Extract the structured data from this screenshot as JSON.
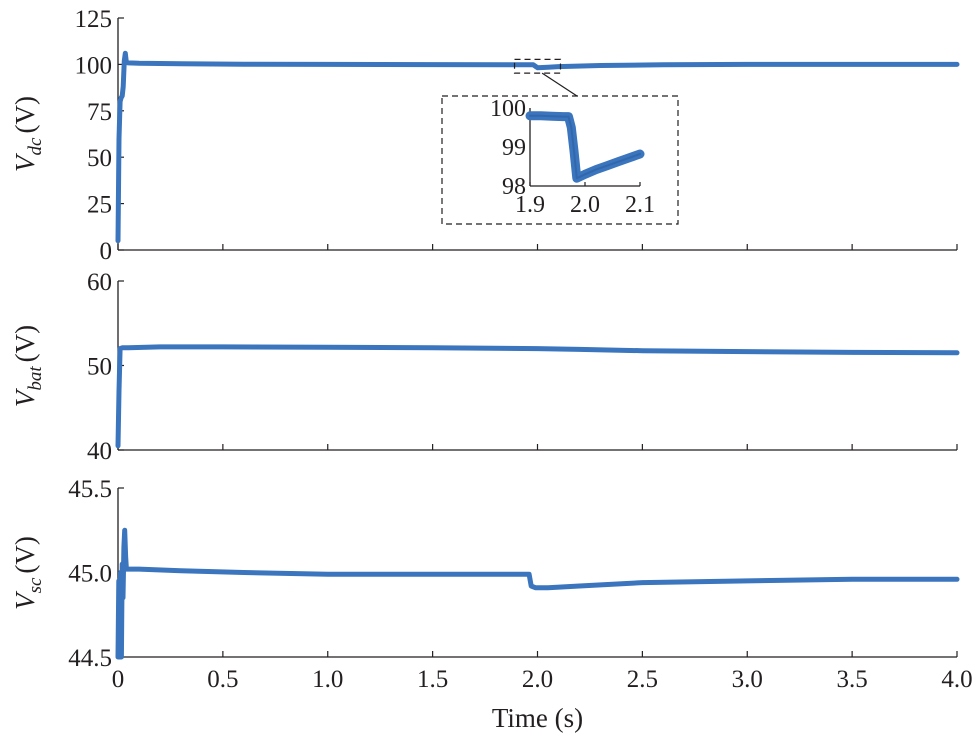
{
  "chart_data": [
    {
      "type": "line",
      "ylabel": {
        "symbol": "V",
        "subscript": "dc",
        "unit": "(V)"
      },
      "xlim": [
        0,
        4.0
      ],
      "ylim": [
        0,
        125
      ],
      "yticks": [
        0,
        25,
        50,
        75,
        100,
        125
      ],
      "ytick_labels": [
        "0",
        "25",
        "50",
        "75",
        "100",
        "125"
      ],
      "grid": false,
      "series": [
        {
          "x": [
            0,
            0.005,
            0.01,
            0.015,
            0.02,
            0.025,
            0.03,
            0.035,
            0.04,
            0.05,
            0.1,
            0.3,
            0.6,
            1.0,
            1.5,
            1.9,
            1.98,
            2.0,
            2.05,
            2.1,
            2.3,
            2.6,
            3.0,
            3.5,
            4.0
          ],
          "y": [
            5,
            60,
            80,
            82,
            83,
            88,
            102,
            106,
            101,
            100.8,
            100.6,
            100.3,
            100.1,
            100.0,
            99.9,
            99.8,
            99.8,
            98.2,
            98.5,
            98.8,
            99.4,
            99.8,
            100.0,
            100.0,
            100.0
          ]
        }
      ],
      "zoom_region": {
        "xlim": [
          1.9,
          2.1
        ],
        "ylim": [
          98,
          100
        ]
      },
      "inset": {
        "xlim": [
          1.9,
          2.1
        ],
        "ylim": [
          98,
          100
        ],
        "xticks": [
          1.9,
          2.0,
          2.1
        ],
        "xtick_labels": [
          "1.9",
          "2.0",
          "2.1"
        ],
        "yticks": [
          98,
          99,
          100
        ],
        "ytick_labels": [
          "98",
          "99",
          "100"
        ],
        "series": [
          {
            "x": [
              1.9,
              1.92,
              1.94,
              1.96,
              1.97,
              1.975,
              1.98,
              1.985,
              2.0,
              2.02,
              2.04,
              2.06,
              2.08,
              2.1
            ],
            "y": [
              99.8,
              99.8,
              99.79,
              99.78,
              99.78,
              99.5,
              98.9,
              98.2,
              98.3,
              98.42,
              98.52,
              98.62,
              98.72,
              98.82
            ]
          }
        ]
      }
    },
    {
      "type": "line",
      "ylabel": {
        "symbol": "V",
        "subscript": "bat",
        "unit": "(V)"
      },
      "xlim": [
        0,
        4.0
      ],
      "ylim": [
        40,
        60
      ],
      "yticks": [
        40,
        50,
        60
      ],
      "ytick_labels": [
        "40",
        "50",
        "60"
      ],
      "grid": false,
      "series": [
        {
          "x": [
            0,
            0.005,
            0.01,
            0.02,
            0.05,
            0.2,
            0.5,
            1.0,
            1.5,
            2.0,
            2.2,
            2.5,
            3.0,
            3.5,
            4.0
          ],
          "y": [
            40.5,
            47,
            52,
            52.1,
            52.1,
            52.2,
            52.2,
            52.15,
            52.1,
            52.0,
            51.9,
            51.75,
            51.65,
            51.55,
            51.5
          ]
        }
      ]
    },
    {
      "type": "line",
      "ylabel": {
        "symbol": "V",
        "subscript": "sc",
        "unit": "(V)"
      },
      "xlim": [
        0,
        4.0
      ],
      "ylim": [
        44.5,
        45.5
      ],
      "yticks": [
        44.5,
        45.0,
        45.5
      ],
      "ytick_labels": [
        "44.5",
        "45.0",
        "45.5"
      ],
      "xticks": [
        0,
        0.5,
        1.0,
        1.5,
        2.0,
        2.5,
        3.0,
        3.5,
        4.0
      ],
      "xtick_labels": [
        "0",
        "0.5",
        "1.0",
        "1.5",
        "2.0",
        "2.5",
        "3.0",
        "3.5",
        "4.0"
      ],
      "xlabel": "Time (s)",
      "grid": false,
      "series": [
        {
          "x": [
            0,
            0.004,
            0.008,
            0.012,
            0.016,
            0.02,
            0.024,
            0.028,
            0.032,
            0.036,
            0.04,
            0.05,
            0.1,
            0.3,
            0.6,
            1.0,
            1.5,
            1.9,
            1.96,
            1.97,
            1.99,
            2.05,
            2.2,
            2.5,
            3.0,
            3.5,
            4.0
          ],
          "y": [
            44.5,
            44.95,
            44.5,
            45.0,
            44.5,
            45.05,
            44.85,
            45.15,
            45.25,
            45.1,
            45.02,
            45.02,
            45.02,
            45.01,
            45.0,
            44.99,
            44.99,
            44.99,
            44.99,
            44.92,
            44.91,
            44.91,
            44.92,
            44.94,
            44.95,
            44.96,
            44.96
          ]
        }
      ]
    }
  ],
  "colors": {
    "trace": "#3a75be",
    "trace_edge": "#2d5f9e",
    "axis": "#231f20"
  }
}
